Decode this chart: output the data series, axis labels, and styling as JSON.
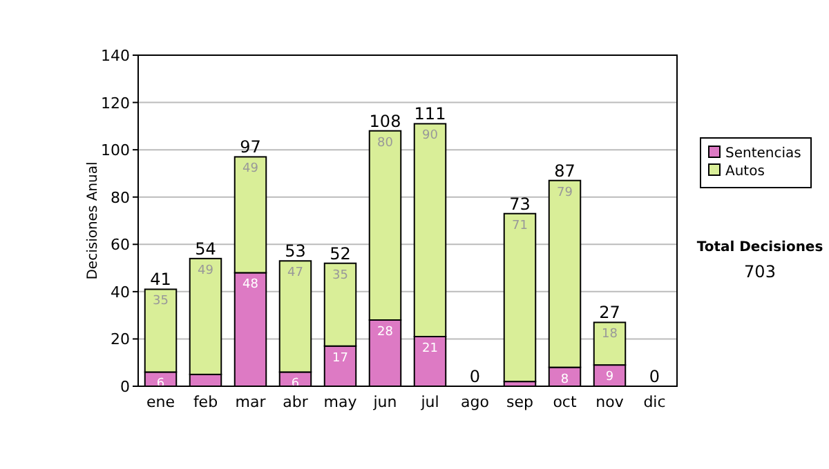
{
  "chart_data": {
    "type": "bar",
    "stacked": true,
    "ylabel": "Decisiones Anual",
    "categories": [
      "ene",
      "feb",
      "mar",
      "abr",
      "may",
      "jun",
      "jul",
      "ago",
      "sep",
      "oct",
      "nov",
      "dic"
    ],
    "series": [
      {
        "name": "Sentencias",
        "color": "#dd7ac4",
        "values": [
          6,
          5,
          48,
          6,
          17,
          28,
          21,
          0,
          2,
          8,
          9,
          0
        ],
        "value_labels": [
          "6",
          null,
          "48",
          "6",
          "17",
          "28",
          "21",
          null,
          null,
          "8",
          "9",
          null
        ]
      },
      {
        "name": "Autos",
        "color": "#d9ee98",
        "values": [
          35,
          49,
          49,
          47,
          35,
          80,
          90,
          0,
          71,
          79,
          18,
          0
        ],
        "value_labels": [
          "35",
          "49",
          "49",
          "47",
          "35",
          "80",
          "90",
          null,
          "71",
          "79",
          "18",
          null
        ]
      }
    ],
    "totals": [
      "41",
      "54",
      "97",
      "53",
      "52",
      "108",
      "111",
      "0",
      "73",
      "87",
      "27",
      "0"
    ],
    "ylim": [
      0,
      140
    ],
    "yticks": [
      0,
      20,
      40,
      60,
      80,
      100,
      120,
      140
    ],
    "grid": "y",
    "legend": "right",
    "annotations": [
      "Total Decisiones",
      "703"
    ]
  }
}
